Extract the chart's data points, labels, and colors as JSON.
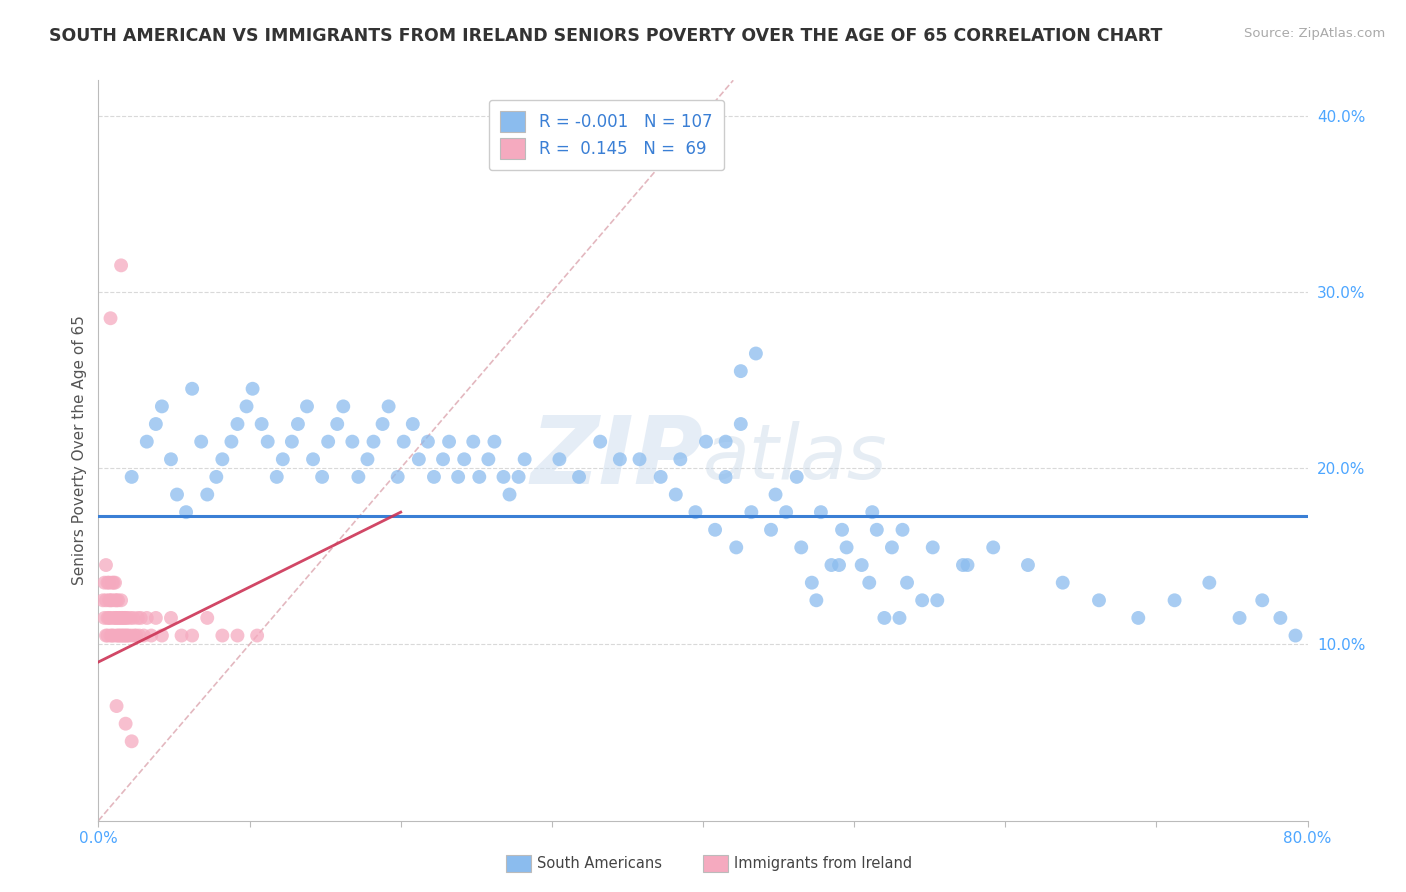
{
  "title": "SOUTH AMERICAN VS IMMIGRANTS FROM IRELAND SENIORS POVERTY OVER THE AGE OF 65 CORRELATION CHART",
  "source": "Source: ZipAtlas.com",
  "ylabel": "Seniors Poverty Over the Age of 65",
  "xlim": [
    0.0,
    0.8
  ],
  "ylim": [
    0.0,
    0.42
  ],
  "color_blue": "#8BBCEE",
  "color_pink": "#F5AABF",
  "legend_r1": "-0.001",
  "legend_n1": "107",
  "legend_r2": "0.145",
  "legend_n2": "69",
  "watermark_zip": "ZIP",
  "watermark_atlas": "atlas",
  "background_color": "#ffffff",
  "grid_color": "#d5d5d5",
  "trend_blue_color": "#3a7fd5",
  "trend_pink_color": "#cc3355",
  "diagonal_color": "#e0b0b8",
  "blue_trend_y": 0.173,
  "blue_x": [
    0.022,
    0.032,
    0.038,
    0.042,
    0.048,
    0.052,
    0.058,
    0.062,
    0.068,
    0.072,
    0.078,
    0.082,
    0.088,
    0.092,
    0.098,
    0.102,
    0.108,
    0.112,
    0.118,
    0.122,
    0.128,
    0.132,
    0.138,
    0.142,
    0.148,
    0.152,
    0.158,
    0.162,
    0.168,
    0.172,
    0.178,
    0.182,
    0.188,
    0.192,
    0.198,
    0.202,
    0.208,
    0.212,
    0.218,
    0.222,
    0.228,
    0.232,
    0.238,
    0.242,
    0.248,
    0.252,
    0.258,
    0.262,
    0.268,
    0.272,
    0.278,
    0.282,
    0.305,
    0.318,
    0.332,
    0.345,
    0.358,
    0.372,
    0.385,
    0.402,
    0.415,
    0.432,
    0.448,
    0.462,
    0.478,
    0.492,
    0.512,
    0.532,
    0.552,
    0.572,
    0.592,
    0.615,
    0.638,
    0.662,
    0.688,
    0.712,
    0.735,
    0.755,
    0.77,
    0.782,
    0.792,
    0.472,
    0.53,
    0.555,
    0.49,
    0.51,
    0.475,
    0.52,
    0.545,
    0.535,
    0.505,
    0.495,
    0.485,
    0.465,
    0.515,
    0.525,
    0.445,
    0.455,
    0.575,
    0.415,
    0.425,
    0.435,
    0.425,
    0.382,
    0.395,
    0.408,
    0.422
  ],
  "blue_y": [
    0.195,
    0.215,
    0.225,
    0.235,
    0.205,
    0.185,
    0.175,
    0.245,
    0.215,
    0.185,
    0.195,
    0.205,
    0.215,
    0.225,
    0.235,
    0.245,
    0.225,
    0.215,
    0.195,
    0.205,
    0.215,
    0.225,
    0.235,
    0.205,
    0.195,
    0.215,
    0.225,
    0.235,
    0.215,
    0.195,
    0.205,
    0.215,
    0.225,
    0.235,
    0.195,
    0.215,
    0.225,
    0.205,
    0.215,
    0.195,
    0.205,
    0.215,
    0.195,
    0.205,
    0.215,
    0.195,
    0.205,
    0.215,
    0.195,
    0.185,
    0.195,
    0.205,
    0.205,
    0.195,
    0.215,
    0.205,
    0.205,
    0.195,
    0.205,
    0.215,
    0.195,
    0.175,
    0.185,
    0.195,
    0.175,
    0.165,
    0.175,
    0.165,
    0.155,
    0.145,
    0.155,
    0.145,
    0.135,
    0.125,
    0.115,
    0.125,
    0.135,
    0.115,
    0.125,
    0.115,
    0.105,
    0.135,
    0.115,
    0.125,
    0.145,
    0.135,
    0.125,
    0.115,
    0.125,
    0.135,
    0.145,
    0.155,
    0.145,
    0.155,
    0.165,
    0.155,
    0.165,
    0.175,
    0.145,
    0.215,
    0.225,
    0.265,
    0.255,
    0.185,
    0.175,
    0.165,
    0.155
  ],
  "pink_x": [
    0.003,
    0.004,
    0.004,
    0.005,
    0.005,
    0.005,
    0.006,
    0.006,
    0.006,
    0.007,
    0.007,
    0.007,
    0.008,
    0.008,
    0.008,
    0.009,
    0.009,
    0.009,
    0.01,
    0.01,
    0.01,
    0.011,
    0.011,
    0.011,
    0.012,
    0.012,
    0.012,
    0.013,
    0.013,
    0.013,
    0.014,
    0.014,
    0.015,
    0.015,
    0.015,
    0.016,
    0.016,
    0.017,
    0.017,
    0.018,
    0.018,
    0.019,
    0.019,
    0.02,
    0.021,
    0.022,
    0.023,
    0.024,
    0.025,
    0.026,
    0.027,
    0.028,
    0.03,
    0.032,
    0.035,
    0.038,
    0.042,
    0.048,
    0.055,
    0.062,
    0.072,
    0.082,
    0.092,
    0.105,
    0.015,
    0.008,
    0.012,
    0.018,
    0.022
  ],
  "pink_y": [
    0.125,
    0.135,
    0.115,
    0.105,
    0.145,
    0.125,
    0.115,
    0.135,
    0.105,
    0.125,
    0.115,
    0.135,
    0.105,
    0.125,
    0.115,
    0.135,
    0.105,
    0.125,
    0.115,
    0.135,
    0.105,
    0.125,
    0.115,
    0.135,
    0.105,
    0.115,
    0.125,
    0.105,
    0.115,
    0.125,
    0.105,
    0.115,
    0.105,
    0.115,
    0.125,
    0.105,
    0.115,
    0.105,
    0.115,
    0.105,
    0.115,
    0.105,
    0.115,
    0.105,
    0.115,
    0.105,
    0.115,
    0.105,
    0.105,
    0.115,
    0.105,
    0.115,
    0.105,
    0.115,
    0.105,
    0.115,
    0.105,
    0.115,
    0.105,
    0.105,
    0.115,
    0.105,
    0.105,
    0.105,
    0.315,
    0.285,
    0.065,
    0.055,
    0.045
  ]
}
